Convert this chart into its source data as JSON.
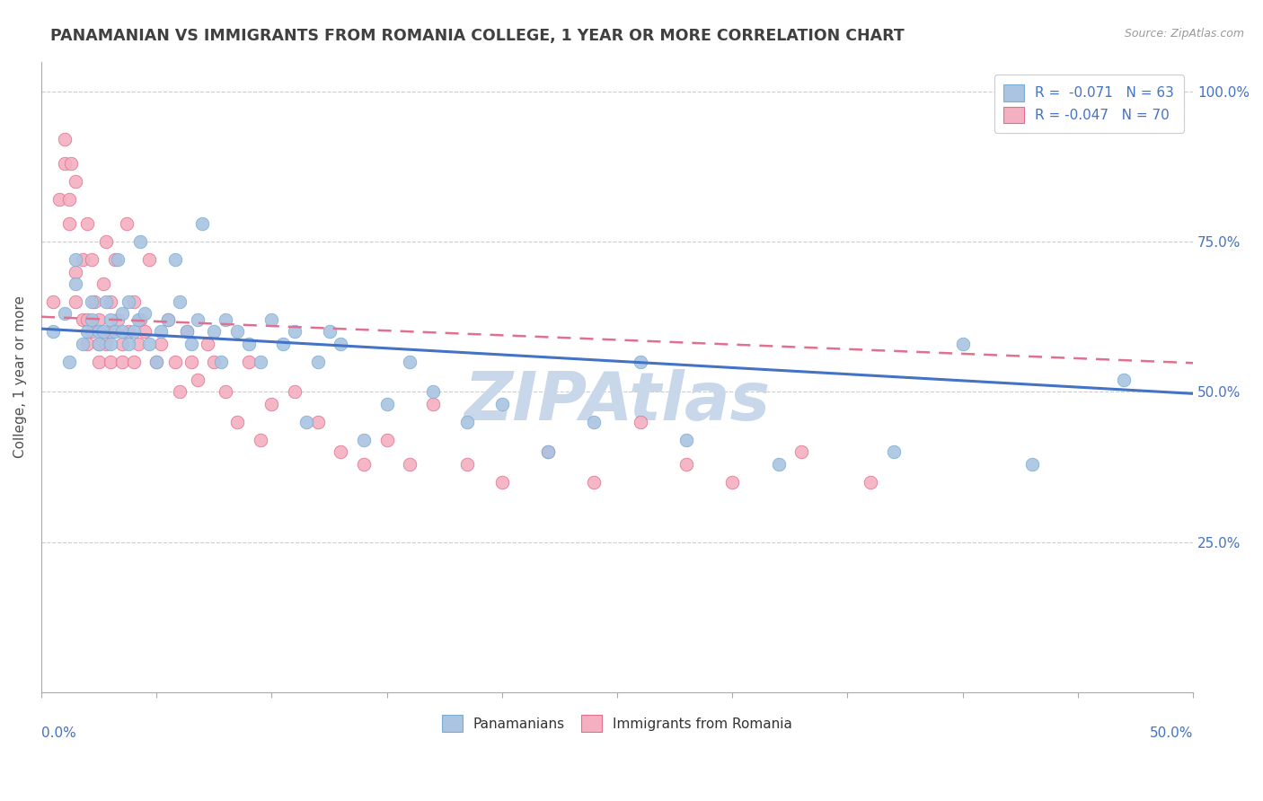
{
  "title": "PANAMANIAN VS IMMIGRANTS FROM ROMANIA COLLEGE, 1 YEAR OR MORE CORRELATION CHART",
  "source": "Source: ZipAtlas.com",
  "ylabel": "College, 1 year or more",
  "xlim": [
    0.0,
    0.5
  ],
  "ylim": [
    0.0,
    1.05
  ],
  "yticks": [
    0.0,
    0.25,
    0.5,
    0.75,
    1.0
  ],
  "ytick_labels": [
    "",
    "25.0%",
    "50.0%",
    "75.0%",
    "100.0%"
  ],
  "legend_r_labels": [
    {
      "label": "R =  -0.071   N = 63",
      "color": "#aac4e2"
    },
    {
      "label": "R = -0.047   N = 70",
      "color": "#f4afc0"
    }
  ],
  "series_blue": {
    "name": "Panamanians",
    "color": "#aac4e2",
    "edge_color": "#7aadd4",
    "line_color": "#4472c4",
    "x": [
      0.005,
      0.01,
      0.012,
      0.015,
      0.015,
      0.018,
      0.02,
      0.022,
      0.022,
      0.025,
      0.025,
      0.027,
      0.028,
      0.03,
      0.03,
      0.032,
      0.033,
      0.035,
      0.035,
      0.038,
      0.038,
      0.04,
      0.042,
      0.043,
      0.045,
      0.047,
      0.05,
      0.052,
      0.055,
      0.058,
      0.06,
      0.063,
      0.065,
      0.068,
      0.07,
      0.075,
      0.078,
      0.08,
      0.085,
      0.09,
      0.095,
      0.1,
      0.105,
      0.11,
      0.115,
      0.12,
      0.125,
      0.13,
      0.14,
      0.15,
      0.16,
      0.17,
      0.185,
      0.2,
      0.22,
      0.24,
      0.26,
      0.28,
      0.32,
      0.37,
      0.4,
      0.43,
      0.47
    ],
    "y": [
      0.6,
      0.63,
      0.55,
      0.68,
      0.72,
      0.58,
      0.6,
      0.62,
      0.65,
      0.6,
      0.58,
      0.6,
      0.65,
      0.62,
      0.58,
      0.6,
      0.72,
      0.6,
      0.63,
      0.58,
      0.65,
      0.6,
      0.62,
      0.75,
      0.63,
      0.58,
      0.55,
      0.6,
      0.62,
      0.72,
      0.65,
      0.6,
      0.58,
      0.62,
      0.78,
      0.6,
      0.55,
      0.62,
      0.6,
      0.58,
      0.55,
      0.62,
      0.58,
      0.6,
      0.45,
      0.55,
      0.6,
      0.58,
      0.42,
      0.48,
      0.55,
      0.5,
      0.45,
      0.48,
      0.4,
      0.45,
      0.55,
      0.42,
      0.38,
      0.4,
      0.58,
      0.38,
      0.52
    ]
  },
  "series_pink": {
    "name": "Immigrants from Romania",
    "color": "#f4afc0",
    "edge_color": "#e07090",
    "line_color": "#e07090",
    "x": [
      0.005,
      0.008,
      0.01,
      0.01,
      0.012,
      0.012,
      0.013,
      0.015,
      0.015,
      0.015,
      0.018,
      0.018,
      0.02,
      0.02,
      0.02,
      0.022,
      0.022,
      0.023,
      0.025,
      0.025,
      0.025,
      0.027,
      0.028,
      0.028,
      0.03,
      0.03,
      0.03,
      0.032,
      0.033,
      0.035,
      0.035,
      0.037,
      0.038,
      0.04,
      0.04,
      0.042,
      0.043,
      0.045,
      0.047,
      0.05,
      0.052,
      0.055,
      0.058,
      0.06,
      0.063,
      0.065,
      0.068,
      0.072,
      0.075,
      0.08,
      0.085,
      0.09,
      0.095,
      0.1,
      0.11,
      0.12,
      0.13,
      0.14,
      0.15,
      0.16,
      0.17,
      0.185,
      0.2,
      0.22,
      0.24,
      0.26,
      0.28,
      0.3,
      0.33,
      0.36
    ],
    "y": [
      0.65,
      0.82,
      0.92,
      0.88,
      0.78,
      0.82,
      0.88,
      0.65,
      0.7,
      0.85,
      0.62,
      0.72,
      0.58,
      0.62,
      0.78,
      0.6,
      0.72,
      0.65,
      0.55,
      0.58,
      0.62,
      0.68,
      0.58,
      0.75,
      0.55,
      0.6,
      0.65,
      0.72,
      0.62,
      0.55,
      0.58,
      0.78,
      0.6,
      0.55,
      0.65,
      0.58,
      0.62,
      0.6,
      0.72,
      0.55,
      0.58,
      0.62,
      0.55,
      0.5,
      0.6,
      0.55,
      0.52,
      0.58,
      0.55,
      0.5,
      0.45,
      0.55,
      0.42,
      0.48,
      0.5,
      0.45,
      0.4,
      0.38,
      0.42,
      0.38,
      0.48,
      0.38,
      0.35,
      0.4,
      0.35,
      0.45,
      0.38,
      0.35,
      0.4,
      0.35
    ]
  },
  "watermark": "ZIPAtlas",
  "watermark_color": "#c8d8ea",
  "background_color": "#ffffff",
  "grid_color": "#cccccc",
  "title_color": "#404040",
  "axis_label_color": "#4472c4"
}
